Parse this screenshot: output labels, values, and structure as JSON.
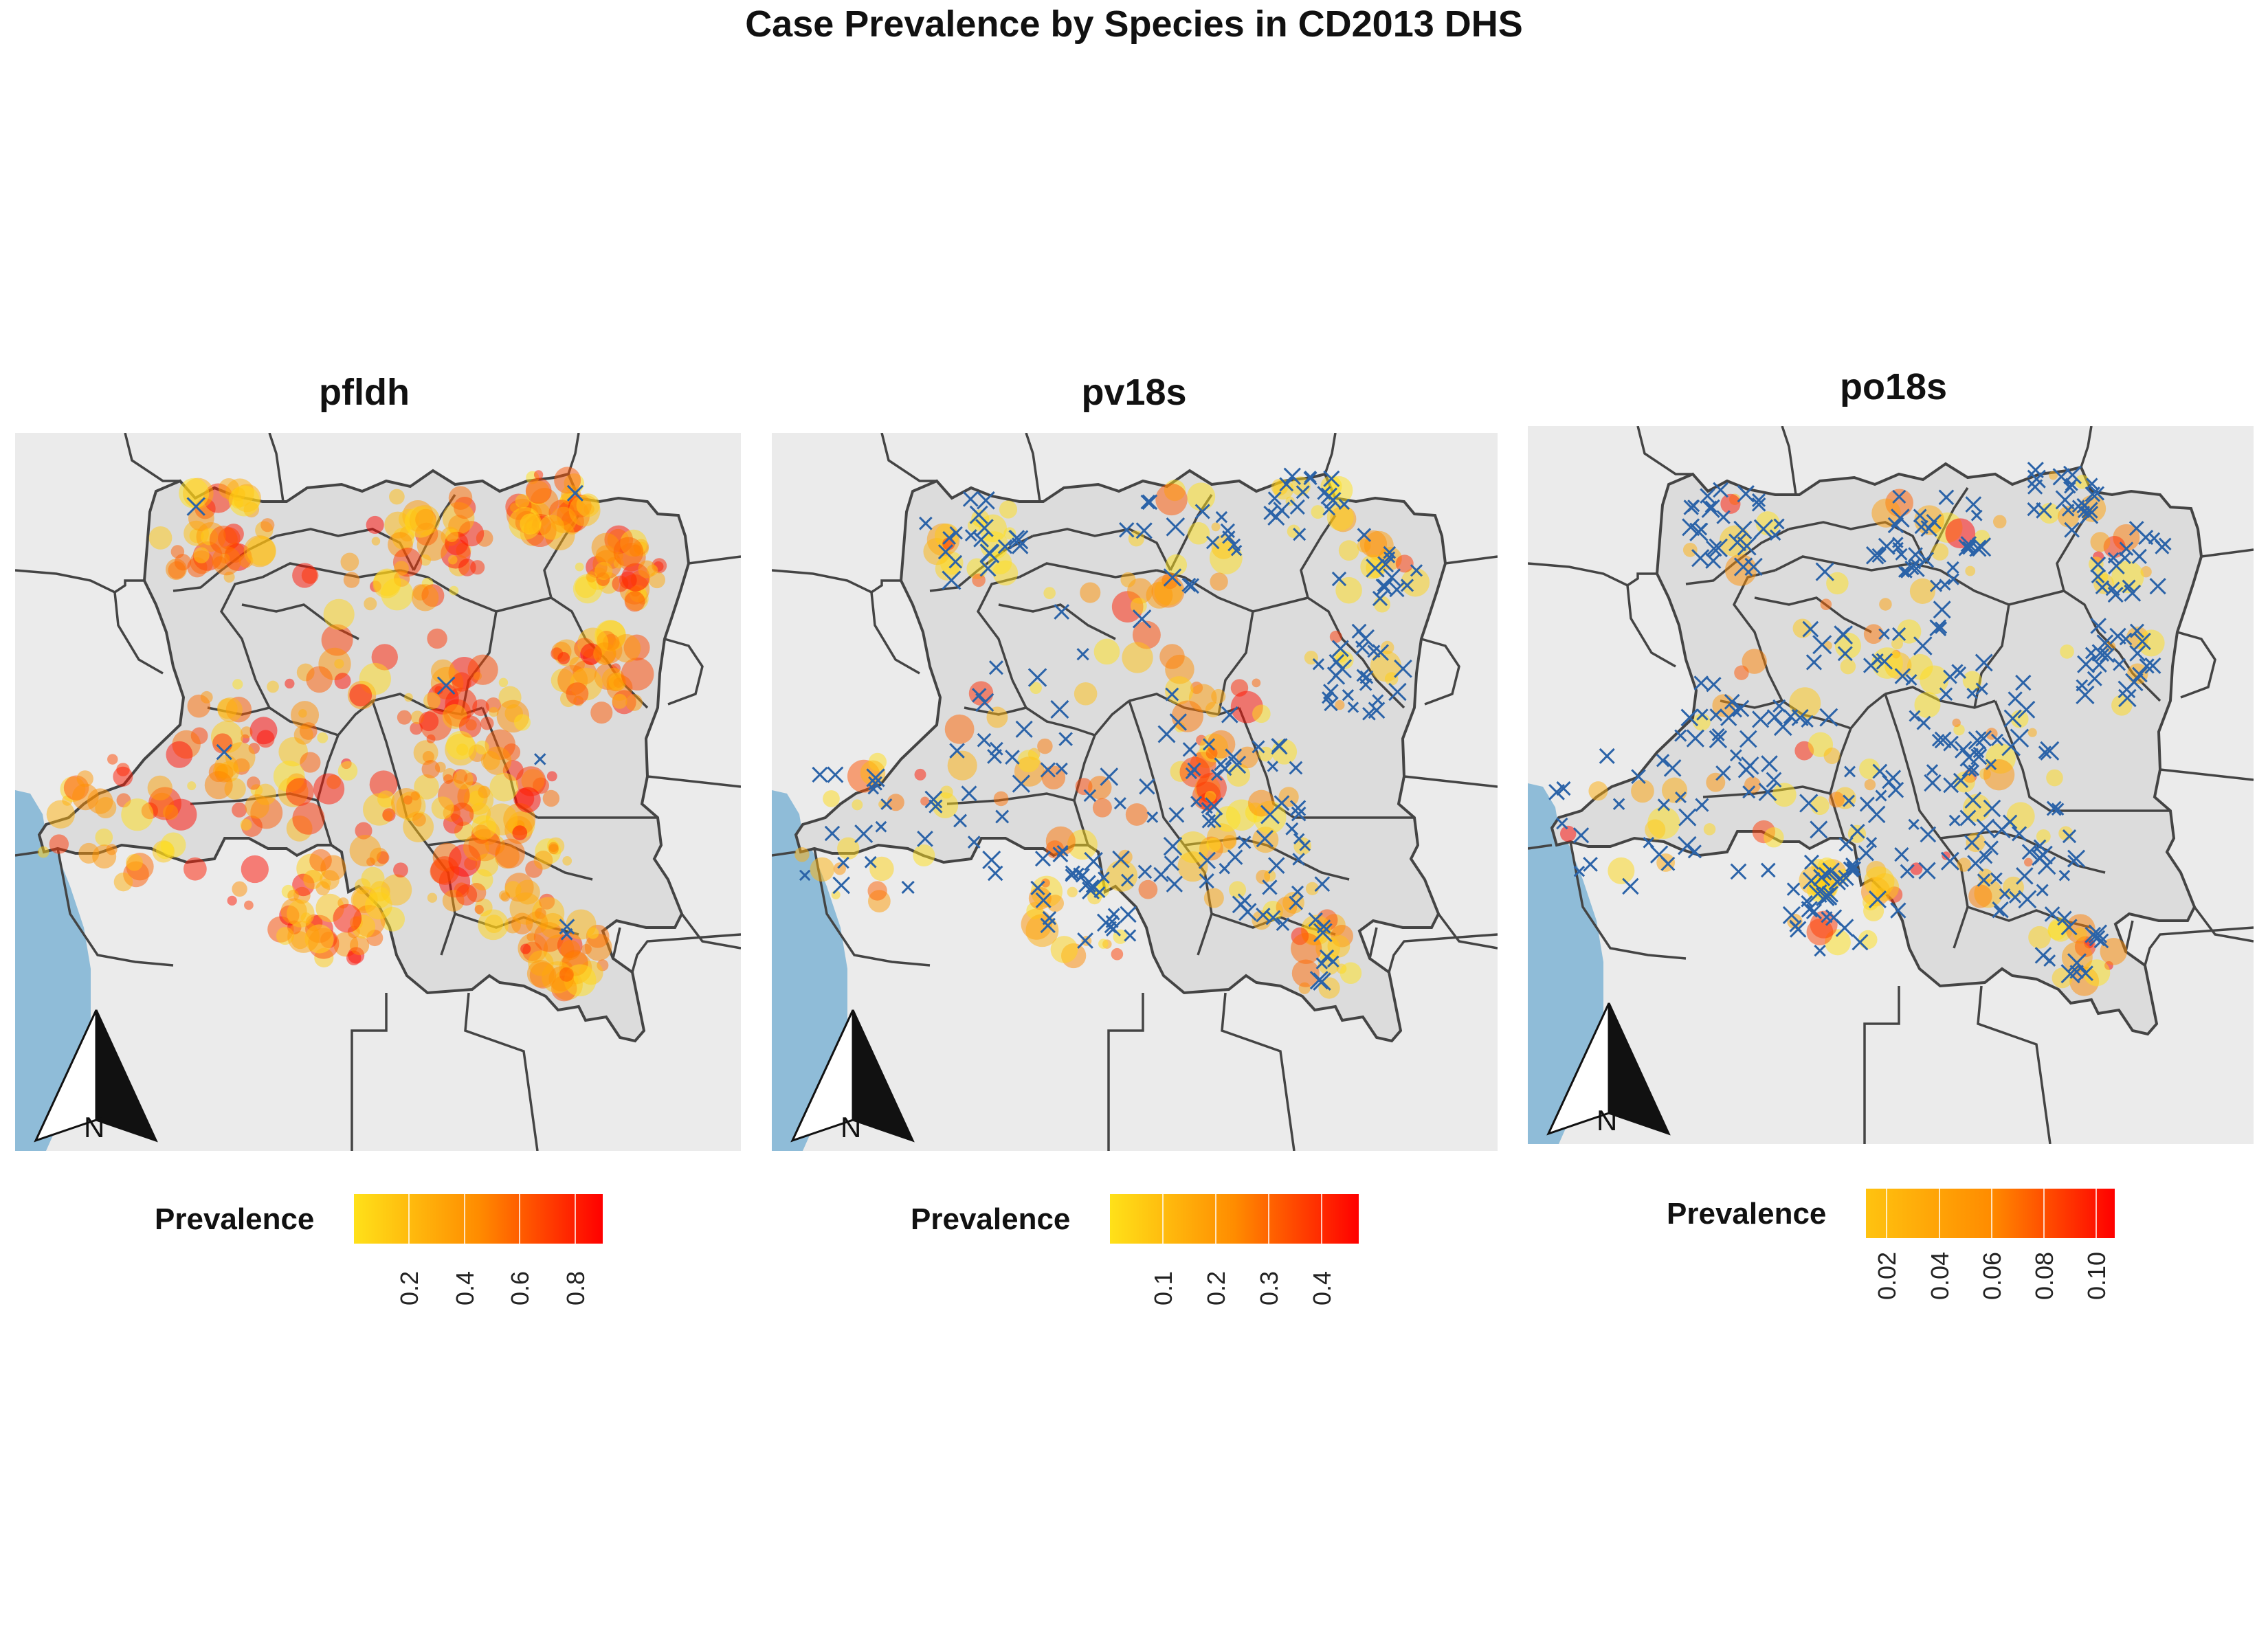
{
  "title": "Case Prevalence by Species in CD2013 DHS",
  "colors": {
    "panel_bg": "#ebebeb",
    "country_fill": "#dcdcdc",
    "border": "#444444",
    "water": "#8fbcd8",
    "negative_marker": "#2b63a8",
    "scale_low": "#ffe119",
    "scale_mid": "#ff8c00",
    "scale_high": "#ff0000"
  },
  "panels": [
    {
      "id": "pfldh",
      "title": "pfldh",
      "legend": {
        "title": "Prevalence",
        "min": 0.0,
        "max": 0.9,
        "ticks": [
          "0.2",
          "0.4",
          "0.6",
          "0.8"
        ],
        "tick_values": [
          0.2,
          0.4,
          0.6,
          0.8
        ]
      },
      "north_label": "N"
    },
    {
      "id": "pv18s",
      "title": "pv18s",
      "legend": {
        "title": "Prevalence",
        "min": 0.0,
        "max": 0.47,
        "ticks": [
          "0.1",
          "0.2",
          "0.3",
          "0.4"
        ],
        "tick_values": [
          0.1,
          0.2,
          0.3,
          0.4
        ]
      },
      "north_label": "N"
    },
    {
      "id": "po18s",
      "title": "po18s",
      "legend": {
        "title": "Prevalence",
        "min": 0.012,
        "max": 0.107,
        "ticks": [
          "0.02",
          "0.04",
          "0.06",
          "0.08",
          "0.10"
        ],
        "tick_values": [
          0.02,
          0.04,
          0.06,
          0.08,
          0.1
        ]
      },
      "north_label": "N"
    }
  ]
}
